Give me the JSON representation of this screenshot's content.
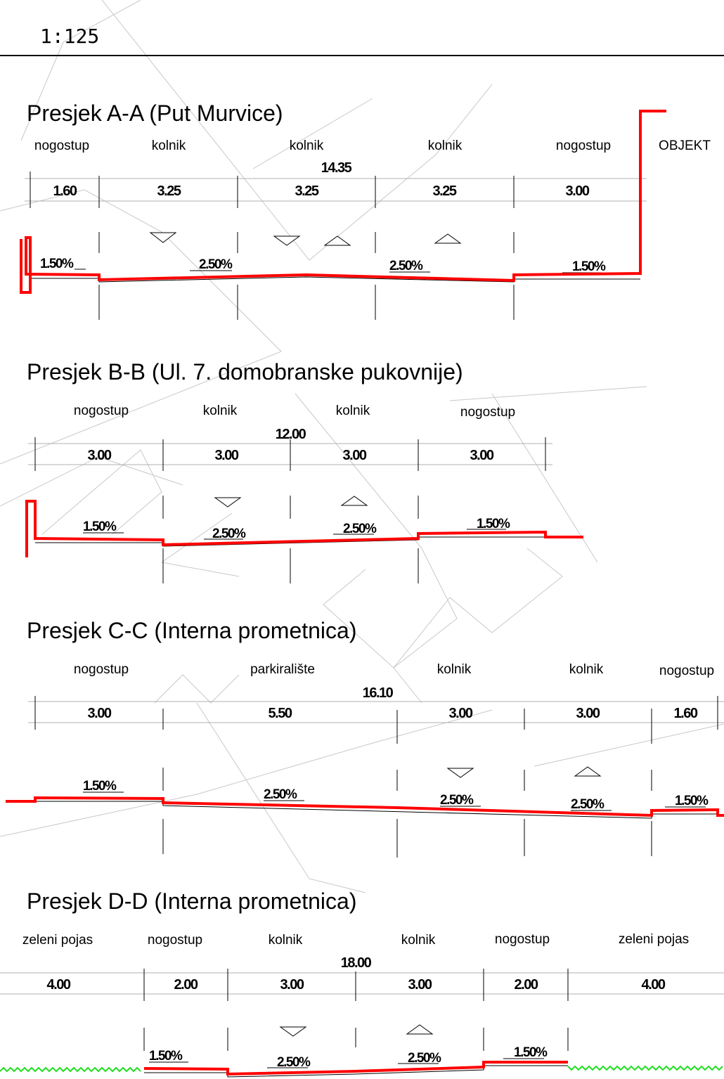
{
  "scale": "1:125",
  "sections": [
    {
      "title": "Presjek A-A (Put Murvice)",
      "total": "14.35",
      "lanes": [
        "nogostup",
        "kolnik",
        "kolnik",
        "kolnik",
        "nogostup",
        "OBJEKT"
      ],
      "widths": [
        "1.60",
        "3.25",
        "3.25",
        "3.25",
        "3.00"
      ],
      "slopes": [
        "1.50%",
        "2.50%",
        "2.50%",
        "1.50%"
      ]
    },
    {
      "title": "Presjek B-B (Ul. 7. domobranske pukovnije)",
      "total": "12.00",
      "lanes": [
        "nogostup",
        "kolnik",
        "kolnik",
        "nogostup"
      ],
      "widths": [
        "3.00",
        "3.00",
        "3.00",
        "3.00"
      ],
      "slopes": [
        "1.50%",
        "2.50%",
        "2.50%",
        "1.50%"
      ]
    },
    {
      "title": "Presjek C-C (Interna prometnica)",
      "total": "16.10",
      "lanes": [
        "nogostup",
        "parkiralište",
        "kolnik",
        "kolnik",
        "nogostup"
      ],
      "widths": [
        "3.00",
        "5.50",
        "3.00",
        "3.00",
        "1.60"
      ],
      "slopes": [
        "1.50%",
        "2.50%",
        "2.50%",
        "2.50%",
        "1.50%"
      ]
    },
    {
      "title": "Presjek D-D (Interna prometnica)",
      "total": "18.00",
      "lanes": [
        "zeleni pojas",
        "nogostup",
        "kolnik",
        "kolnik",
        "nogostup",
        "zeleni pojas"
      ],
      "widths": [
        "4.00",
        "2.00",
        "3.00",
        "3.00",
        "2.00",
        "4.00"
      ],
      "slopes": [
        "1.50%",
        "2.50%",
        "2.50%",
        "1.50%"
      ]
    }
  ],
  "colors": {
    "road_profile": "#ff0000",
    "green_belt": "#22dd22",
    "lines": "#000000",
    "background_lines": "#c8c8c8"
  }
}
